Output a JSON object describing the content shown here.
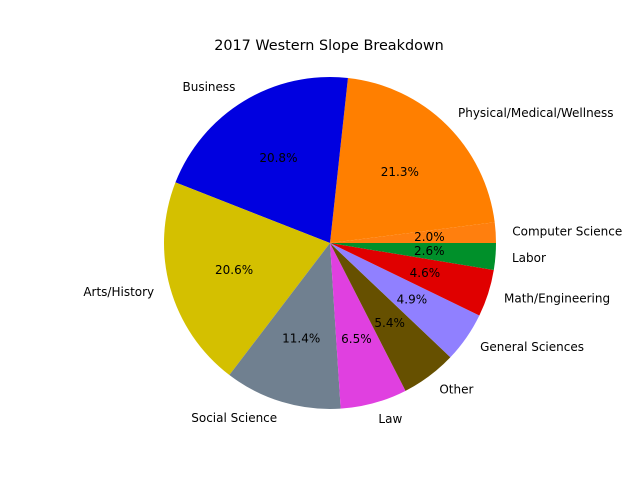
{
  "chart_data": {
    "type": "pie",
    "title": "2017 Western Slope Breakdown",
    "slices": [
      {
        "label": "Computer Science",
        "value": 2.0,
        "pct_label": "2.0%",
        "color": "#ff7f0e"
      },
      {
        "label": "Physical/Medical/Wellness",
        "value": 21.3,
        "pct_label": "21.3%",
        "color": "#ff7f00"
      },
      {
        "label": "Business",
        "value": 20.8,
        "pct_label": "20.8%",
        "color": "#0000e0"
      },
      {
        "label": "Arts/History",
        "value": 20.6,
        "pct_label": "20.6%",
        "color": "#d4c000"
      },
      {
        "label": "Social Science",
        "value": 11.4,
        "pct_label": "11.4%",
        "color": "#708090"
      },
      {
        "label": "Law",
        "value": 6.5,
        "pct_label": "6.5%",
        "color": "#e040e0"
      },
      {
        "label": "Other",
        "value": 5.4,
        "pct_label": "5.4%",
        "color": "#665000"
      },
      {
        "label": "General Sciences",
        "value": 4.9,
        "pct_label": "4.9%",
        "color": "#9080ff"
      },
      {
        "label": "Math/Engineering",
        "value": 4.6,
        "pct_label": "4.6%",
        "color": "#e00000"
      },
      {
        "label": "Labor",
        "value": 2.6,
        "pct_label": "2.6%",
        "color": "#00902a"
      }
    ],
    "start_angle_deg": 0,
    "direction": "counterclockwise",
    "legend": "none"
  }
}
